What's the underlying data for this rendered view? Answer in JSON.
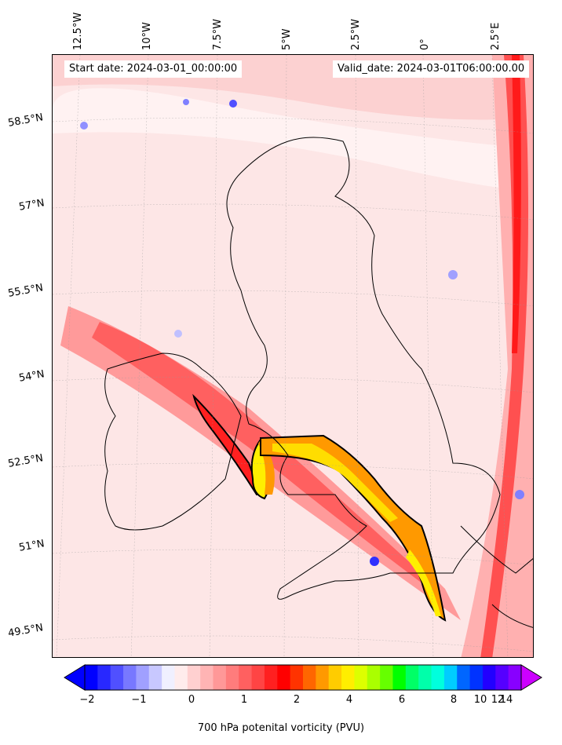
{
  "header": {
    "start_date": "Start date: 2024-03-01_00:00:00",
    "valid_date": "Valid_date: 2024-03-01T06:00:00.00"
  },
  "axes": {
    "longitude_labels": [
      "12.5°W",
      "10°W",
      "7.5°W",
      "5°W",
      "2.5°W",
      "0°",
      "2.5°E"
    ],
    "latitude_labels": [
      "58.5°N",
      "57°N",
      "55.5°N",
      "54°N",
      "52.5°N",
      "51°N",
      "49.5°N"
    ]
  },
  "colorbar": {
    "label": "700 hPa potenital vorticity (PVU)",
    "tick_labels": [
      "−2",
      "−1",
      "0",
      "1",
      "2",
      "4",
      "6",
      "8",
      "10",
      "12",
      "14"
    ],
    "colors": [
      "#0000ff",
      "#2828ff",
      "#5050ff",
      "#7878ff",
      "#a0a0ff",
      "#c8c8ff",
      "#f0f0ff",
      "#ffecec",
      "#ffd0d0",
      "#ffb4b4",
      "#ff9898",
      "#ff7c7c",
      "#ff6060",
      "#ff4444",
      "#ff2020",
      "#ff0000",
      "#ff3300",
      "#ff6600",
      "#ff9900",
      "#ffcc00",
      "#ffee00",
      "#ddff00",
      "#aaff00",
      "#66ff00",
      "#00ff00",
      "#00ff66",
      "#00ffaa",
      "#00ffdd",
      "#00ccff",
      "#0066ff",
      "#0033ff",
      "#2200ff",
      "#5500ff",
      "#8800ff"
    ],
    "under_color": "#0000ff",
    "over_color": "#cc00ff"
  }
}
